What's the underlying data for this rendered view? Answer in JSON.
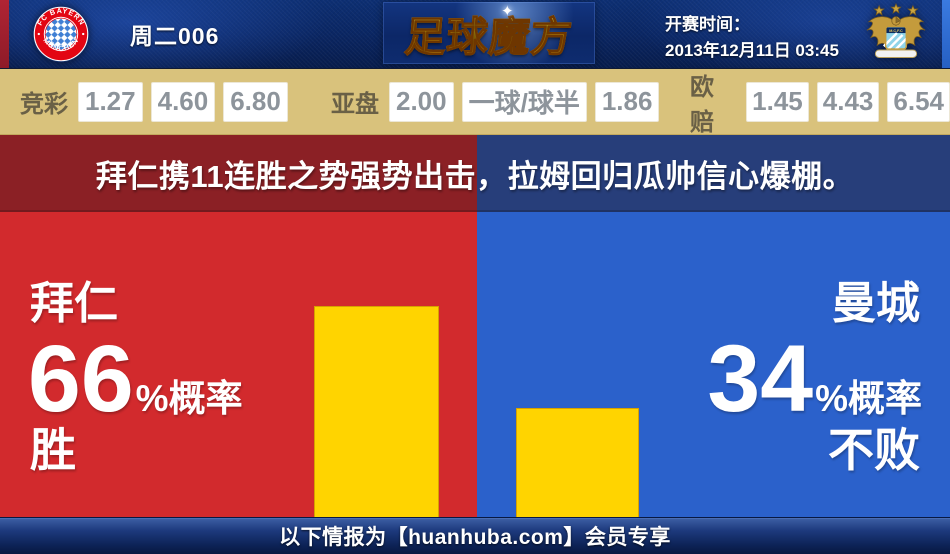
{
  "header": {
    "match_id": "周二006",
    "site_logo": "足球魔方",
    "kickoff_label": "开赛时间：",
    "kickoff_time": "2013年12月11日 03:45",
    "home_badge": {
      "line1": "FC BAYERN",
      "line2": "MÜNCHEN"
    },
    "away_badge": {
      "band": "M.C.F.C"
    }
  },
  "odds_bar": {
    "groups": [
      {
        "label": "竞彩",
        "values": [
          "1.27",
          "4.60",
          "6.80"
        ]
      },
      {
        "label": "亚盘",
        "values": [
          "2.00",
          "一球/球半",
          "1.86"
        ]
      },
      {
        "label": "欧赔",
        "values": [
          "1.45",
          "4.43",
          "6.54"
        ]
      }
    ]
  },
  "headline": "拜仁携11连胜之势强势出击，拉姆回归瓜帅信心爆棚。",
  "prediction": {
    "home": {
      "team": "拜仁",
      "percent": "66",
      "percent_suffix": "%概率",
      "outcome": "胜",
      "bar_percent": 66
    },
    "away": {
      "team": "曼城",
      "percent": "34",
      "percent_suffix": "%概率",
      "outcome": "不败",
      "bar_percent": 34
    }
  },
  "footer": {
    "notice": "以下情报为【huanhuba.com】会员专享"
  },
  "icons": {
    "sparkle": "✦"
  },
  "colors": {
    "home_red": "#d22a2d",
    "away_blue": "#2b61cb",
    "home_dark_red": "#8b2025",
    "away_dark_navy": "#273e7a",
    "bar_yellow": "#ffd400",
    "odds_bar_tan": "#d9c27c"
  },
  "chart_data": {
    "type": "bar",
    "categories": [
      "拜仁 胜",
      "曼城 不败"
    ],
    "values": [
      66,
      34
    ],
    "unit": "%概率",
    "bar_color": "#ffd400",
    "title": ""
  }
}
